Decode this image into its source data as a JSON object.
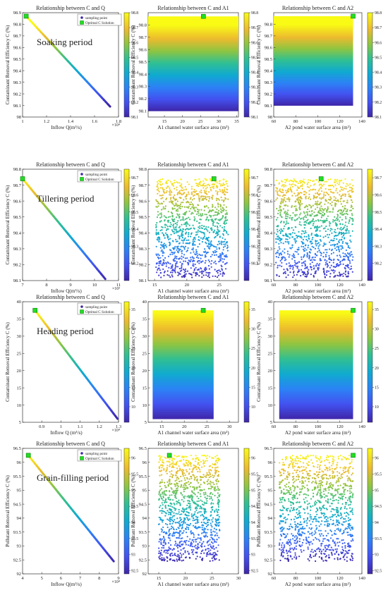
{
  "legend": {
    "sampling": "sampling point",
    "optimal_q": "Optimal C Solution",
    "optimal_c": "Optimal C Solution"
  },
  "rows": [
    {
      "period": "Soaking period",
      "ylabel": "Contaminant Removal Efficiency C (%)",
      "clim": [
        98.1,
        98.8
      ],
      "cticks": [
        "98.1",
        "98.2",
        "98.3",
        "98.4",
        "98.5",
        "98.6",
        "98.7",
        "98.8"
      ],
      "optimal_key": "optimal_q",
      "panels": [
        {
          "title": "Relationship between C and Q",
          "type": "line",
          "xlabel": "Inflow Q(m³/s)",
          "xmult": "×10⁴",
          "xlim": [
            1.0,
            1.8
          ],
          "xticks": [
            "1",
            "1.2",
            "1.4",
            "1.6",
            "1.8"
          ],
          "ylim": [
            98.0,
            98.9
          ],
          "yticks": [
            "98",
            "98.1",
            "98.2",
            "98.3",
            "98.4",
            "98.5",
            "98.6",
            "98.7",
            "98.8",
            "98.9"
          ],
          "line": {
            "x": [
              1.03,
              1.73
            ],
            "y": [
              98.87,
              98.09
            ]
          },
          "optimal": {
            "x": 1.03,
            "y": 98.87
          },
          "legend": true
        },
        {
          "title": "Relationship between C and A1",
          "type": "band",
          "xlabel": "A1 channel water surface area (m²)",
          "xlim": [
            10.5,
            35.5
          ],
          "xticks": [
            "15",
            "20",
            "25",
            "30",
            "35"
          ],
          "ylim": [
            98.05,
            98.9
          ],
          "yticks": [
            "98.1",
            "98.2",
            "98.3",
            "98.4",
            "98.5",
            "98.6",
            "98.7",
            "98.8"
          ],
          "band": {
            "x": [
              10.5,
              35.5
            ],
            "y": [
              98.1,
              98.87
            ]
          },
          "optimal": {
            "x": 25.8,
            "y": 98.87
          }
        },
        {
          "title": "Relationship between C and A2",
          "type": "band",
          "xlabel": "A2 pond water surface area (m²)",
          "xlim": [
            60,
            140
          ],
          "xticks": [
            "60",
            "80",
            "100",
            "120",
            "140"
          ],
          "ylim": [
            98.0,
            98.9
          ],
          "yticks": [
            "98",
            "98.1",
            "98.2",
            "98.3",
            "98.4",
            "98.5",
            "98.6",
            "98.7",
            "98.8"
          ],
          "band": {
            "x": [
              60,
              132
            ],
            "y": [
              98.1,
              98.87
            ]
          },
          "optimal": {
            "x": 132,
            "y": 98.87
          }
        }
      ]
    },
    {
      "period": "Tillering period",
      "ylabel": "Contaminant Removal Efficiency C (%)",
      "clim": [
        98.1,
        98.75
      ],
      "cticks": [
        "98.2",
        "98.3",
        "98.4",
        "98.5",
        "98.6",
        "98.7"
      ],
      "optimal_key": "optimal_c",
      "panels": [
        {
          "title": "Relationship between C and Q",
          "type": "line",
          "xlabel": "Inflow Q(m³/s)",
          "xmult": "×10³",
          "xlim": [
            7,
            11
          ],
          "xticks": [
            "7",
            "8",
            "9",
            "10",
            "11"
          ],
          "ylim": [
            98.1,
            98.8
          ],
          "yticks": [
            "98.1",
            "98.2",
            "98.3",
            "98.4",
            "98.5",
            "98.6",
            "98.7",
            "98.8"
          ],
          "line": {
            "x": [
              7.0,
              10.45
            ],
            "y": [
              98.74,
              98.11
            ]
          },
          "optimal": {
            "x": 7.0,
            "y": 98.74
          },
          "legend": true
        },
        {
          "title": "Relationship between C and A1",
          "type": "scatter",
          "xlabel": "A1 channel water surface area (m²)",
          "xlim": [
            14,
            28
          ],
          "xticks": [
            "15",
            "20",
            "25"
          ],
          "ylim": [
            98.1,
            98.8
          ],
          "yticks": [
            "98.1",
            "98.2",
            "98.3",
            "98.4",
            "98.5",
            "98.6",
            "98.7",
            "98.8"
          ],
          "band": {
            "x": [
              15.2,
              26.4
            ],
            "y": [
              98.12,
              98.74
            ]
          },
          "optimal": {
            "x": 24.2,
            "y": 98.74
          }
        },
        {
          "title": "Relationship between C and A2",
          "type": "scatter",
          "xlabel": "A2 pond water surface area (m²)",
          "xlim": [
            60,
            140
          ],
          "xticks": [
            "60",
            "80",
            "100",
            "120",
            "140"
          ],
          "ylim": [
            98.1,
            98.8
          ],
          "yticks": [
            "98.1",
            "98.2",
            "98.3",
            "98.4",
            "98.5",
            "98.6",
            "98.7",
            "98.8"
          ],
          "band": {
            "x": [
              62,
              132
            ],
            "y": [
              98.12,
              98.74
            ]
          },
          "optimal": {
            "x": 103,
            "y": 98.74
          }
        }
      ]
    },
    {
      "period": "Heading period",
      "ylabel": "Contaminant Removal Efficiency C (%)",
      "clim": [
        6,
        37
      ],
      "cticks": [
        "10",
        "15",
        "20",
        "25",
        "30",
        "35"
      ],
      "optimal_key": "optimal_c",
      "panels": [
        {
          "title": "Relationship between C and Q",
          "type": "line",
          "xlabel": "Inflow Q (m³/s)",
          "xmult": "×10⁴",
          "xlim": [
            0.8,
            1.3
          ],
          "xticks": [
            "0.9",
            "1",
            "1.1",
            "1.2",
            "1.3"
          ],
          "ylim": [
            5,
            40
          ],
          "yticks": [
            "5",
            "10",
            "15",
            "20",
            "25",
            "30",
            "35",
            "40"
          ],
          "line": {
            "x": [
              0.865,
              1.295
            ],
            "y": [
              37.5,
              6
            ]
          },
          "optimal": {
            "x": 0.865,
            "y": 37.5
          },
          "legend": true
        },
        {
          "title": "Relationship between C and A1",
          "type": "band",
          "xlabel": "A1 channel water surface area (m²)",
          "xlim": [
            12,
            32
          ],
          "xticks": [
            "15",
            "20",
            "25",
            "30"
          ],
          "ylim": [
            5,
            40
          ],
          "yticks": [
            "5",
            "10",
            "15",
            "20",
            "25",
            "30",
            "35",
            "40"
          ],
          "band": {
            "x": [
              13,
              26.5
            ],
            "y": [
              6,
              37.5
            ]
          },
          "optimal": {
            "x": 24.2,
            "y": 37.5
          }
        },
        {
          "title": "Relationship between C and A2",
          "type": "band",
          "xlabel": "A2 pond water surface area (m²)",
          "xlim": [
            60,
            140
          ],
          "xticks": [
            "60",
            "80",
            "100",
            "120",
            "140"
          ],
          "ylim": [
            5,
            40
          ],
          "yticks": [
            "5",
            "10",
            "15",
            "20",
            "25",
            "30",
            "35",
            "40"
          ],
          "band": {
            "x": [
              65,
              132
            ],
            "y": [
              6,
              37.5
            ]
          },
          "optimal": {
            "x": 132,
            "y": 37.5
          }
        }
      ]
    },
    {
      "period": "Grain-filling period",
      "ylabel": "Pollutant Removal Efficiency C (%)",
      "clim": [
        92.4,
        96.3
      ],
      "cticks": [
        "92.5",
        "93",
        "93.5",
        "94",
        "94.5",
        "95",
        "95.5",
        "96"
      ],
      "optimal_key": "optimal_c",
      "panels": [
        {
          "title": "Relationship between C and Q",
          "type": "line",
          "xlabel": "Inflow Q(m³/s)",
          "xmult": "×10⁴",
          "xlim": [
            4,
            9
          ],
          "xticks": [
            "4",
            "5",
            "6",
            "7",
            "8",
            "9"
          ],
          "ylim": [
            92,
            96.5
          ],
          "yticks": [
            "92",
            "92.5",
            "93",
            "93.5",
            "94",
            "94.5",
            "95",
            "95.5",
            "96",
            "96.5"
          ],
          "line": {
            "x": [
              4.3,
              8.75
            ],
            "y": [
              96.25,
              92.45
            ]
          },
          "optimal": {
            "x": 4.3,
            "y": 96.25
          },
          "legend": true
        },
        {
          "title": "Relationship between C and A1",
          "type": "scatter",
          "xlabel": "A1 channel water surface area (m²)",
          "xlim": [
            13,
            30
          ],
          "xticks": [
            "15",
            "20",
            "25",
            "30"
          ],
          "ylim": [
            92,
            96.5
          ],
          "yticks": [
            "92",
            "92.5",
            "93",
            "93.5",
            "94",
            "94.5",
            "95",
            "95.5",
            "96",
            "96.5"
          ],
          "band": {
            "x": [
              15,
              26.5
            ],
            "y": [
              92.45,
              96.25
            ]
          },
          "optimal": {
            "x": 17,
            "y": 96.25
          }
        },
        {
          "title": "Relationship between C and A2",
          "type": "scatter",
          "xlabel": "A2 pond water surface area (m²)",
          "xlim": [
            60,
            140
          ],
          "xticks": [
            "60",
            "80",
            "100",
            "120",
            "140"
          ],
          "ylim": [
            92,
            96.5
          ],
          "yticks": [
            "92",
            "92.5",
            "93",
            "93.5",
            "94",
            "94.5",
            "95",
            "95.5",
            "96",
            "96.5"
          ],
          "band": {
            "x": [
              65,
              132
            ],
            "y": [
              92.45,
              96.25
            ]
          },
          "optimal": {
            "x": 132,
            "y": 96.25
          }
        }
      ]
    }
  ]
}
